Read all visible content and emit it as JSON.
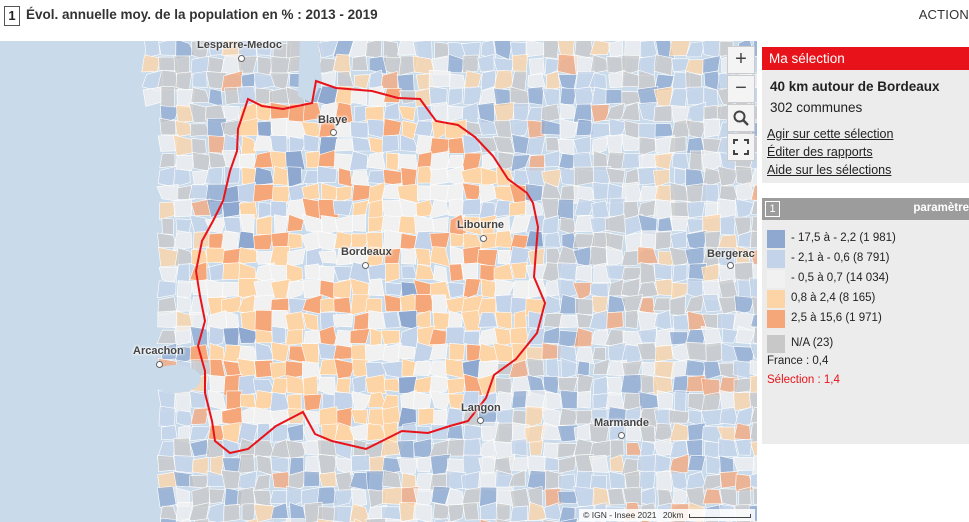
{
  "header": {
    "number": "1",
    "title": "Évol. annuelle moy. de la population en % : 2013 - 2019",
    "actions": "ACTION"
  },
  "map": {
    "places": [
      {
        "name": "Lesparre-Medoc"
      },
      {
        "name": "Blaye"
      },
      {
        "name": "Libourne"
      },
      {
        "name": "Bordeaux"
      },
      {
        "name": "Bergerac"
      },
      {
        "name": "Arcachon"
      },
      {
        "name": "Langon"
      },
      {
        "name": "Marmande"
      }
    ],
    "zoom_in": "+",
    "zoom_out": "−",
    "attribution": "© IGN - Insee 2021",
    "scale_label": "20km"
  },
  "selection": {
    "header": "Ma sélection",
    "title": "40 km autour de Bordeaux",
    "count": "302 communes",
    "links": [
      "Agir sur cette sélection",
      "Éditer des rapports",
      "Aide sur les sélections"
    ]
  },
  "legend": {
    "number": "1",
    "param_label": "paramètre",
    "classes": [
      {
        "label": "- 17,5 à - 2,2 (1 981)",
        "color": "#8ea8cf"
      },
      {
        "label": "- 2,1 à - 0,6 (8 791)",
        "color": "#c3d3ea"
      },
      {
        "label": "- 0,5 à 0,7 (14 034)",
        "color": "#f1f1f1"
      },
      {
        "label": "0,8 à 2,4 (8 165)",
        "color": "#fdd4a6"
      },
      {
        "label": "2,5 à 15,6 (1 971)",
        "color": "#f6a77a"
      },
      {
        "label": "N/A (23)",
        "color": "#c8c8c8"
      }
    ],
    "france": "France : 0,4",
    "selection_value": "Sélection : 1,4",
    "selection_color": "#e8131a",
    "ocean_color": "#c9dbea"
  }
}
